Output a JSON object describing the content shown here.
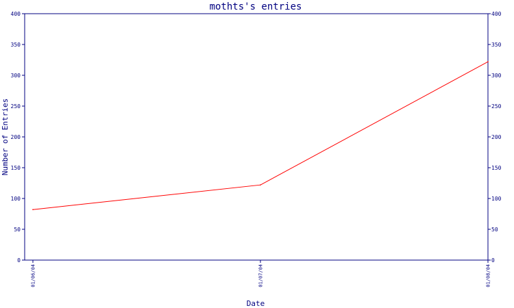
{
  "chart_data": {
    "type": "line",
    "title": "mothts's entries",
    "xlabel": "Date",
    "ylabel": "Number of Entries",
    "x_ticks": [
      "01/06/04",
      "01/07/04",
      "01/08/04"
    ],
    "ylim": [
      0,
      400
    ],
    "y_ticks": [
      0,
      50,
      100,
      150,
      200,
      250,
      300,
      350,
      400
    ],
    "grid": false,
    "series": [
      {
        "color": "#ff0000",
        "points": [
          {
            "x": "2004-01-06",
            "y": 82
          },
          {
            "x": "2004-01-07",
            "y": 122
          },
          {
            "x": "2004-01-08",
            "y": 322
          }
        ]
      }
    ]
  },
  "colors": {
    "axis": "#000080",
    "line": "#ff0000",
    "background": "#ffffff"
  }
}
